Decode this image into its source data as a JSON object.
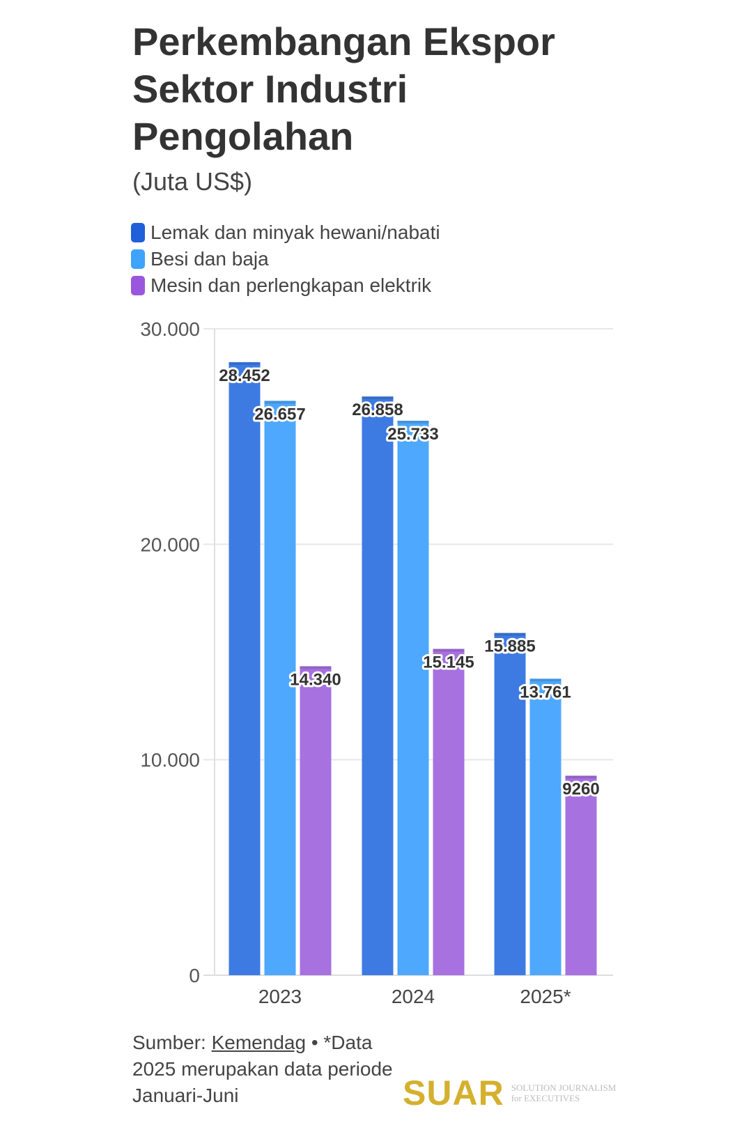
{
  "chart_data": {
    "type": "bar",
    "title": "Perkembangan Ekspor Sektor Industri Pengolahan",
    "subtitle": "(Juta US$)",
    "categories": [
      "2023",
      "2024",
      "2025*"
    ],
    "series": [
      {
        "name": "Lemak dan minyak hewani/nabati",
        "color": "#3d7be3",
        "values": [
          28452,
          26858,
          15885
        ],
        "labels": [
          "28.452",
          "26.858",
          "15.885"
        ]
      },
      {
        "name": "Besi dan baja",
        "color": "#4ea8fd",
        "values": [
          26657,
          25733,
          13761
        ],
        "labels": [
          "26.657",
          "25.733",
          "13.761"
        ]
      },
      {
        "name": "Mesin dan perlengkapan elektrik",
        "color": "#a771e0",
        "values": [
          14340,
          15145,
          9260
        ],
        "labels": [
          "14.340",
          "15.145",
          "9260"
        ]
      }
    ],
    "ylim": [
      0,
      30000
    ],
    "yticks": [
      0,
      10000,
      20000,
      30000
    ],
    "ytick_labels": [
      "0",
      "10.000",
      "20.000",
      "30.000"
    ],
    "legend_position": "top-left",
    "grid": true
  },
  "footer": {
    "source_label": "Sumber:",
    "source_link": "Kemendag",
    "note": " • *Data 2025 merupakan data periode Januari-Juni"
  },
  "logo": {
    "name": "SUAR",
    "tagline1": "SOLUTION JOURNALISM",
    "tagline2": "for EXECUTIVES"
  }
}
